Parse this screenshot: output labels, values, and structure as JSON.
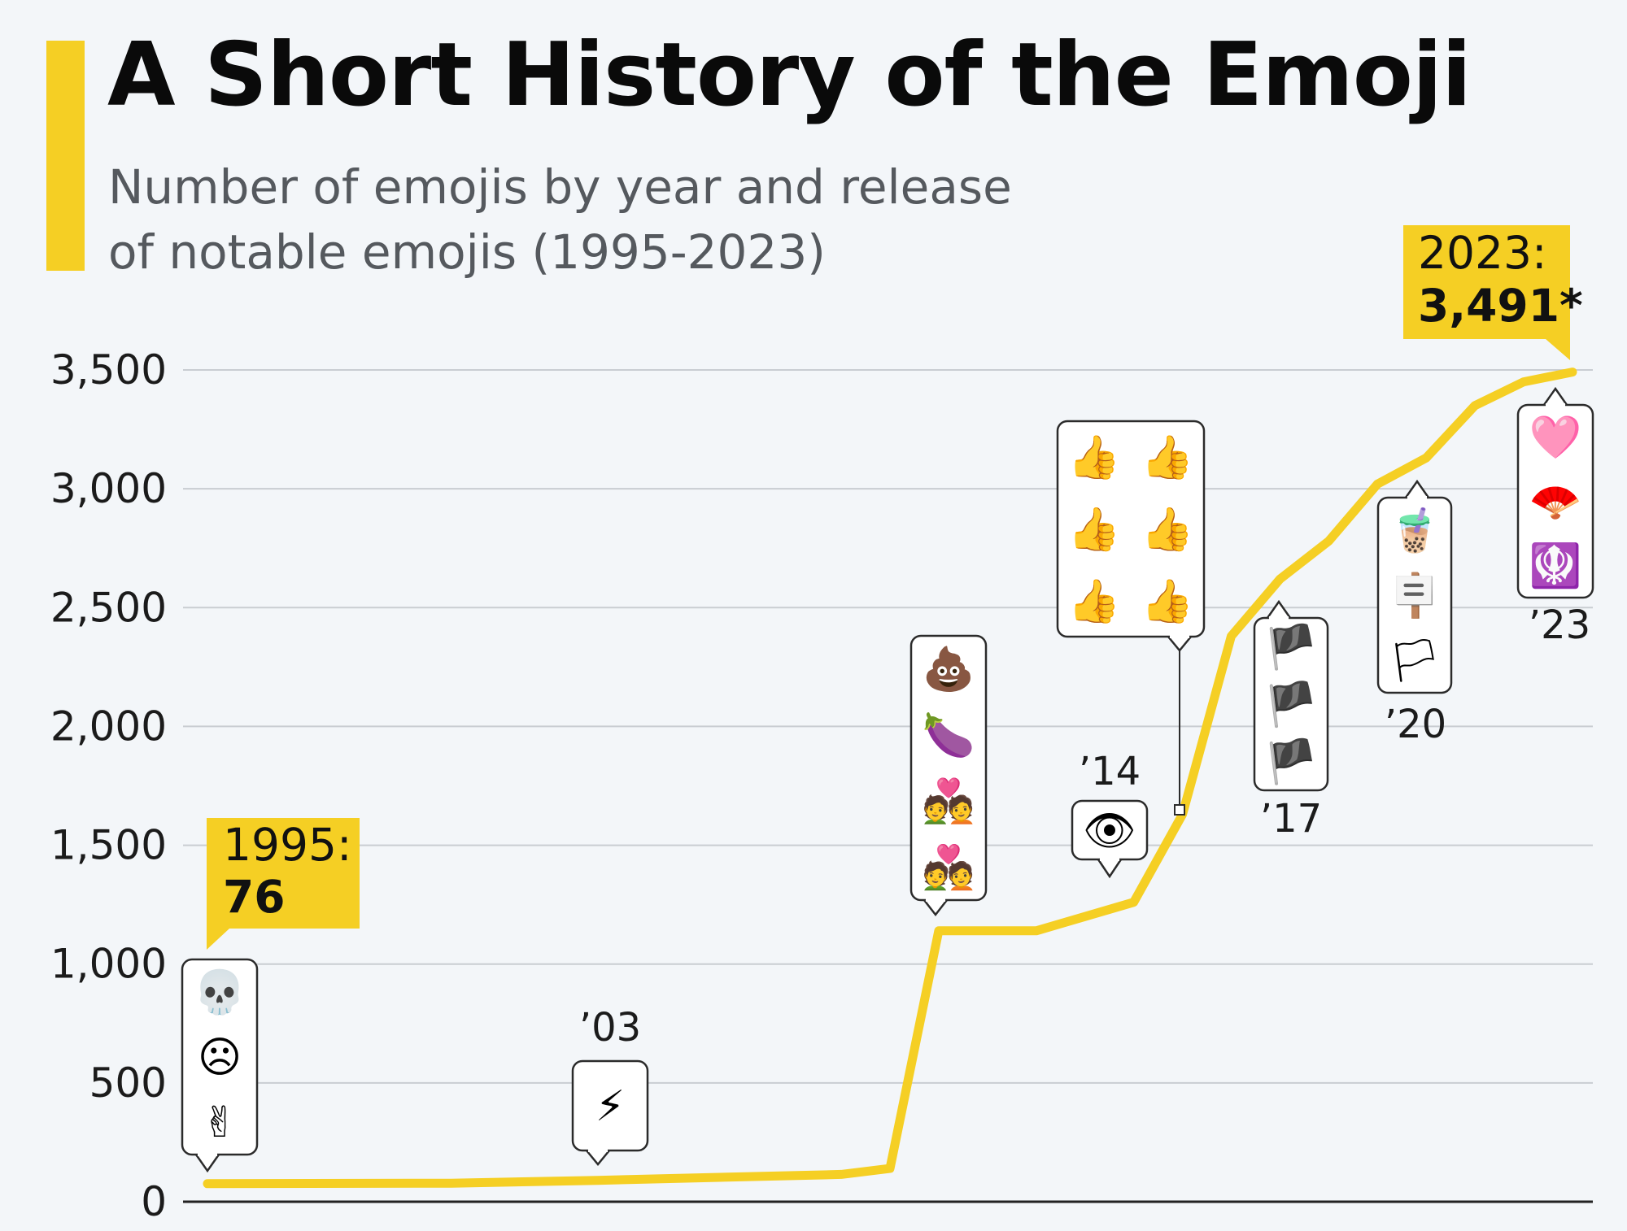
{
  "header": {
    "title": "A Short History of the Emoji",
    "subtitle_line1": "Number of emojis by year and release",
    "subtitle_line2": "of notable emojis (1995-2023)"
  },
  "colors": {
    "accent": "#f5cf24",
    "line": "#f5cf24",
    "grid": "#c9cdd2",
    "background": "#f3f6f9"
  },
  "callouts": {
    "start": {
      "year": "1995:",
      "value": "76"
    },
    "end": {
      "year": "2023:",
      "value": "3,491*"
    }
  },
  "emoji_groups": [
    {
      "id": "g1995",
      "year_label": "",
      "emojis": [
        "💀",
        "☹",
        "✌"
      ],
      "icons": [
        "skull-icon",
        "frowning-face-icon",
        "victory-hand-icon"
      ]
    },
    {
      "id": "g2003",
      "year_label": "’03",
      "emojis": [
        "⚡"
      ],
      "icons": [
        "lightning-icon"
      ]
    },
    {
      "id": "g2010",
      "year_label": "",
      "emojis": [
        "💩",
        "🍆",
        "💑",
        "💑"
      ],
      "icons": [
        "poo-icon",
        "eggplant-icon",
        "couple-heart-icon",
        "couple-heart-icon"
      ]
    },
    {
      "id": "g2014",
      "year_label": "’14",
      "emojis": [
        "👁"
      ],
      "icons": [
        "eye-speech-icon"
      ]
    },
    {
      "id": "g2015",
      "year_label": "",
      "emojis": [
        "👍",
        "👍",
        "👍",
        "👍",
        "👍",
        "👍"
      ],
      "icons": [
        "thumbs-up-default-icon",
        "thumbs-up-medium-icon",
        "thumbs-up-dark-icon",
        "thumbs-up-light-icon",
        "thumbs-up-medium-dark-icon",
        "thumbs-up-lightest-icon"
      ]
    },
    {
      "id": "g2017",
      "year_label": "’17",
      "emojis": [
        "🏴",
        "🏴",
        "🏴"
      ],
      "icons": [
        "england-flag-icon",
        "wales-flag-icon",
        "scotland-flag-icon"
      ]
    },
    {
      "id": "g2020",
      "year_label": "’20",
      "emojis": [
        "🧋",
        "🪧",
        "🏳"
      ],
      "icons": [
        "bubble-tea-icon",
        "placard-icon",
        "transgender-flag-icon"
      ]
    },
    {
      "id": "g2023",
      "year_label": "’23",
      "emojis": [
        "🩷",
        "🪭",
        "🪯"
      ],
      "icons": [
        "pink-heart-icon",
        "folding-fan-icon",
        "khanda-icon"
      ]
    }
  ],
  "chart_data": {
    "type": "line",
    "title": "A Short History of the Emoji",
    "subtitle": "Number of emojis by year and release of notable emojis (1995-2023)",
    "xlabel": "",
    "ylabel": "",
    "ylim": [
      0,
      3500
    ],
    "yticks": [
      0,
      500,
      1000,
      1500,
      2000,
      2500,
      3000,
      3500
    ],
    "ytick_labels": [
      "0",
      "500",
      "1,000",
      "1,500",
      "2,000",
      "2,500",
      "3,000",
      "3,500"
    ],
    "grid": true,
    "series": [
      {
        "x": [
          1995,
          2000,
          2003,
          2008,
          2009,
          2010,
          2012,
          2014,
          2015,
          2016,
          2017,
          2018,
          2019,
          2020,
          2021,
          2022,
          2023
        ],
        "values": [
          76,
          78,
          90,
          115,
          140,
          1140,
          1140,
          1260,
          1630,
          2380,
          2620,
          2780,
          3020,
          3130,
          3350,
          3450,
          3491
        ]
      }
    ]
  }
}
